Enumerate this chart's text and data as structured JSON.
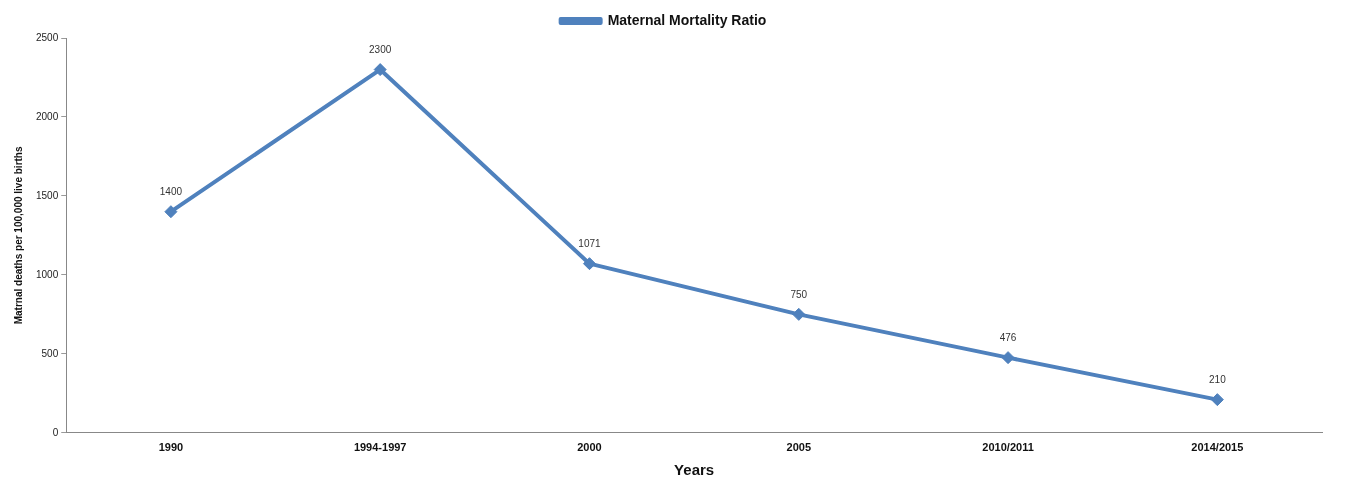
{
  "chart_data": {
    "type": "line",
    "xlabel": "Years",
    "ylabel": "Matrnal deaths per 100,000 live births",
    "categories": [
      "1990",
      "1994-1997",
      "2000",
      "2005",
      "2010/2011",
      "2014/2015"
    ],
    "series": [
      {
        "name": "Maternal Mortality Ratio",
        "color": "#4f81bd",
        "values": [
          1400,
          2300,
          1071,
          750,
          476,
          210
        ]
      }
    ],
    "ylim": [
      0,
      2500
    ],
    "yticks": [
      0,
      500,
      1000,
      1500,
      2000,
      2500
    ],
    "grid": false,
    "legend": "top",
    "marker": "diamond",
    "line_style": "solid",
    "data_labels": true
  }
}
